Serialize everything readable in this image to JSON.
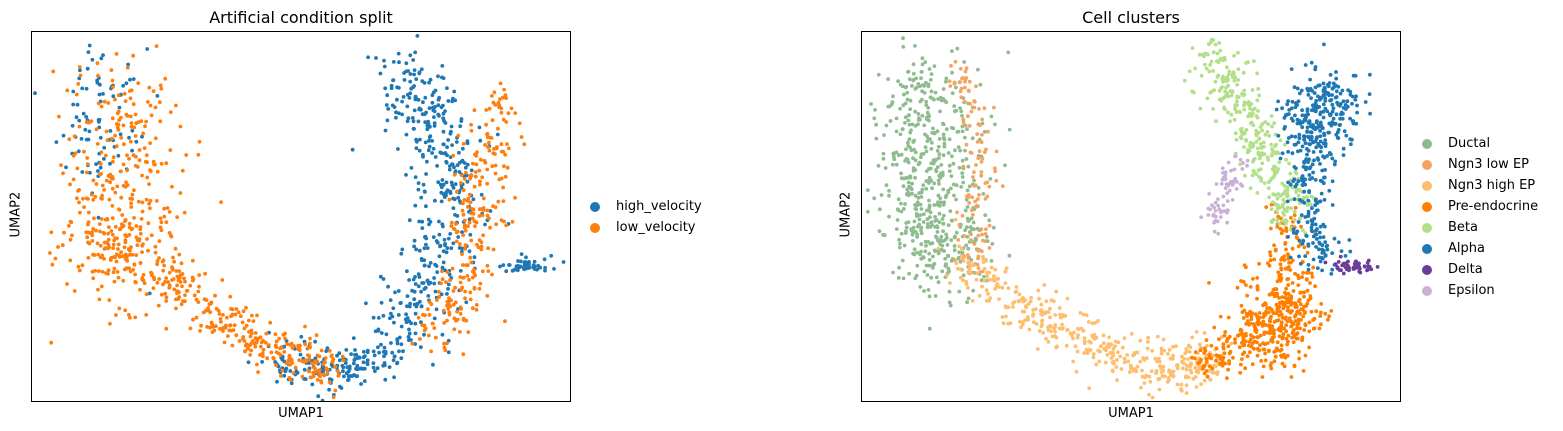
{
  "chart_data": [
    {
      "type": "scatter",
      "title": "Artificial condition split",
      "xlabel": "UMAP1",
      "ylabel": "UMAP2",
      "grid": false,
      "legend_position": "right",
      "series": [
        {
          "name": "high_velocity",
          "color": "#1f77b4"
        },
        {
          "name": "low_velocity",
          "color": "#ff7f0e"
        }
      ]
    },
    {
      "type": "scatter",
      "title": "Cell clusters",
      "xlabel": "UMAP1",
      "ylabel": "UMAP2",
      "grid": false,
      "legend_position": "right",
      "series": [
        {
          "name": "Ductal",
          "color": "#8fbc8f"
        },
        {
          "name": "Ngn3 low EP",
          "color": "#f4a460"
        },
        {
          "name": "Ngn3 high EP",
          "color": "#fdbf6f"
        },
        {
          "name": "Pre-endocrine",
          "color": "#ff7f00"
        },
        {
          "name": "Beta",
          "color": "#b2df8a"
        },
        {
          "name": "Alpha",
          "color": "#1f78b4"
        },
        {
          "name": "Delta",
          "color": "#6a3d9a"
        },
        {
          "name": "Epsilon",
          "color": "#cab2d6"
        }
      ]
    }
  ]
}
